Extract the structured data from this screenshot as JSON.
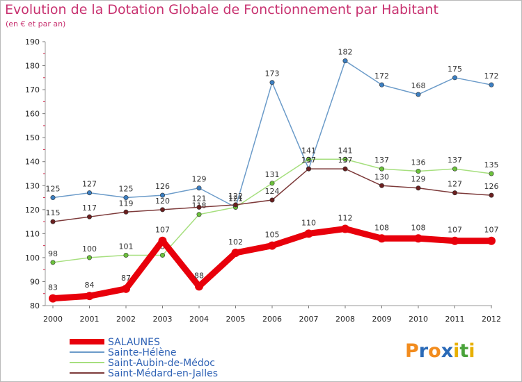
{
  "title": "Evolution de la Dotation Globale de Fonctionnement par Habitant",
  "subtitle": "(en € et par an)",
  "logo": {
    "text": "Proxiti",
    "letters": [
      "P",
      "r",
      "o",
      "x",
      "i",
      "t",
      "i"
    ],
    "colors": [
      "#f28c1e",
      "#2a6ab8",
      "#f28c1e",
      "#2a6ab8",
      "#e8b000",
      "#4aa33a",
      "#e8b000"
    ]
  },
  "chart_data": {
    "type": "line",
    "title": "Evolution de la Dotation Globale de Fonctionnement par Habitant",
    "ylabel": "(en € et par an)",
    "xlabel": "",
    "x": [
      "2000",
      "2001",
      "2002",
      "2003",
      "2004",
      "2005",
      "2006",
      "2007",
      "2008",
      "2009",
      "2010",
      "2011",
      "2012"
    ],
    "ylim": [
      80,
      190
    ],
    "yticks": [
      80,
      90,
      100,
      110,
      120,
      130,
      140,
      150,
      160,
      170,
      180,
      190
    ],
    "grid": false,
    "legend_position": "bottom-left",
    "series": [
      {
        "name": "SALAUNES",
        "color": "#e8000b",
        "marker_color": "#e8000b",
        "values": [
          83,
          84,
          87,
          107,
          88,
          102,
          105,
          110,
          112,
          108,
          108,
          107,
          107
        ]
      },
      {
        "name": "Sainte-Hélène",
        "color": "#6b9bc9",
        "marker_color": "#3c7fc2",
        "values": [
          125,
          127,
          125,
          126,
          129,
          121,
          173,
          137,
          182,
          172,
          168,
          175,
          172
        ]
      },
      {
        "name": "Saint-Aubin-de-Médoc",
        "color": "#a6df7e",
        "marker_color": "#6cc23c",
        "values": [
          98,
          100,
          101,
          101,
          118,
          121,
          131,
          141,
          141,
          137,
          136,
          137,
          135
        ]
      },
      {
        "name": "Saint-Médard-en-Jalles",
        "color": "#7d3a3a",
        "marker_color": "#6b1f1f",
        "values": [
          115,
          117,
          119,
          120,
          121,
          122,
          124,
          137,
          137,
          130,
          129,
          127,
          126
        ]
      }
    ]
  }
}
